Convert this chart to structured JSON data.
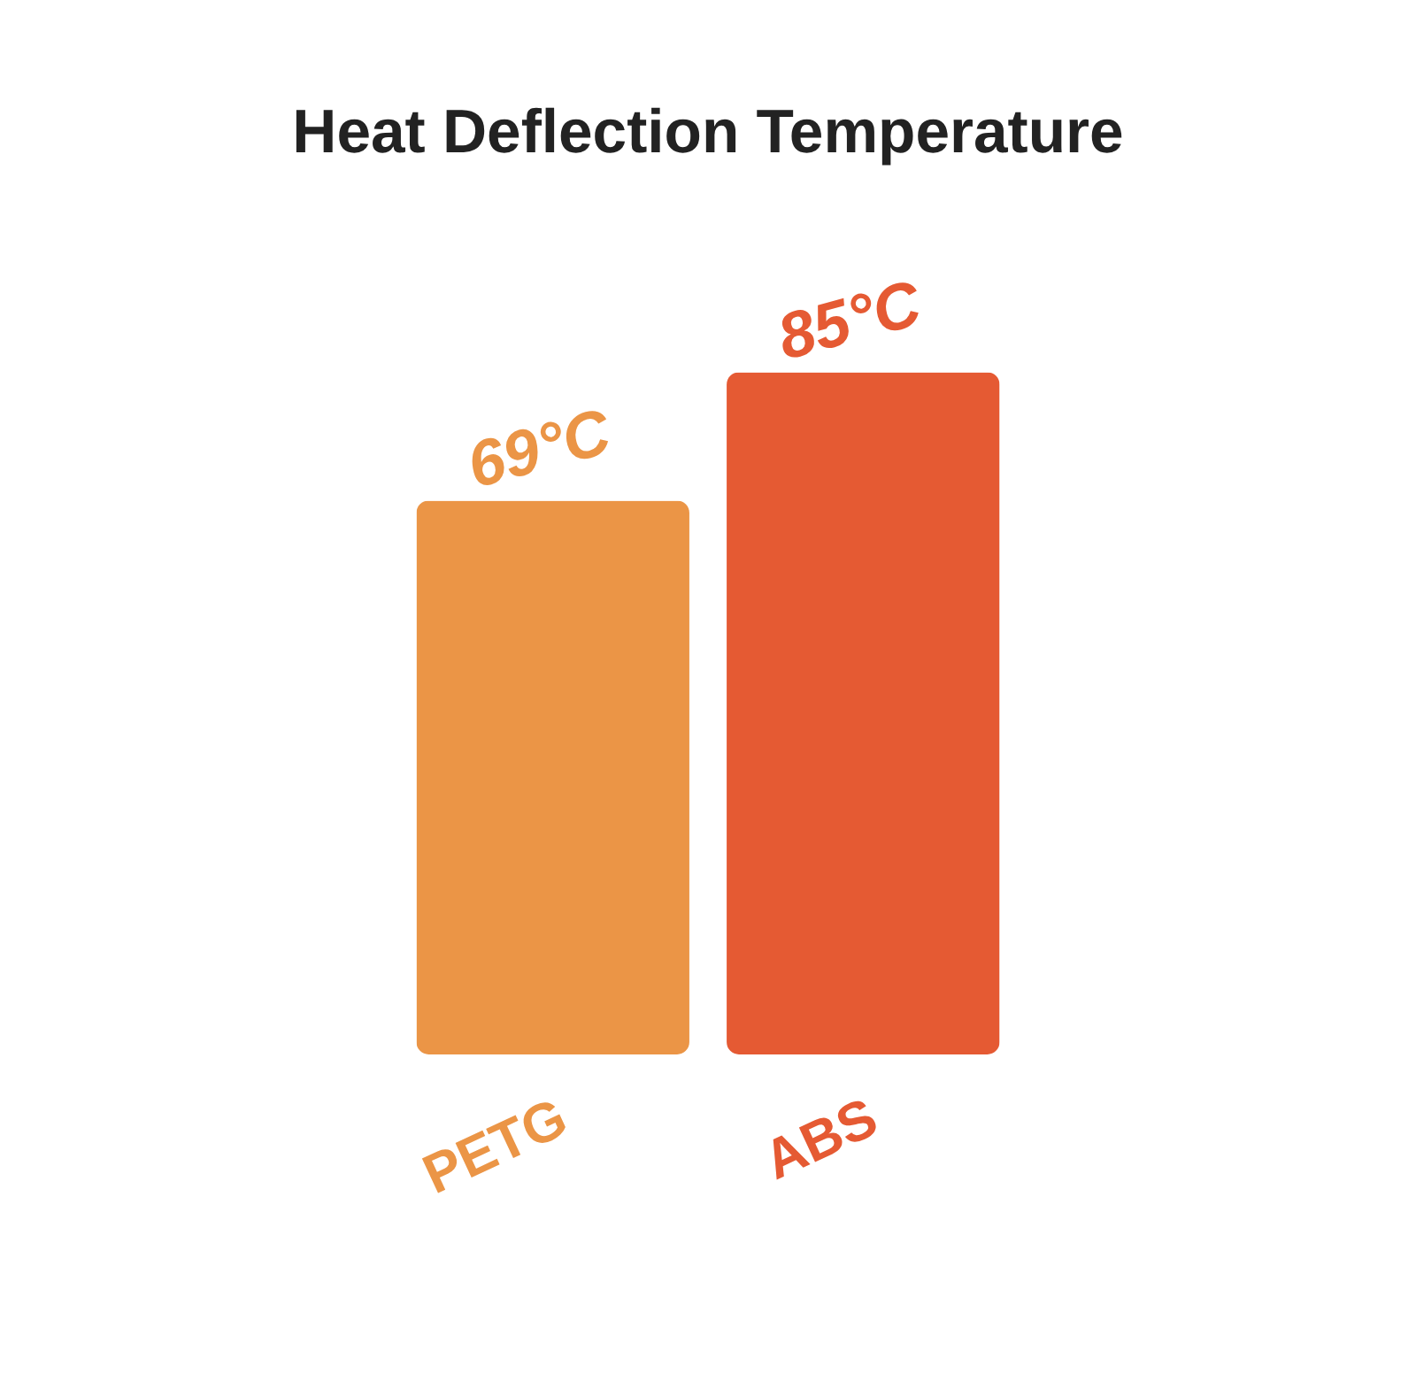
{
  "chart_data": {
    "type": "bar",
    "title": "Heat Deflection Temperature",
    "categories": [
      "PETG",
      "ABS"
    ],
    "values": [
      69,
      85
    ],
    "colors": [
      "#eb9546",
      "#e55a33"
    ],
    "value_labels": [
      "69°C",
      "85°C"
    ],
    "grid": false,
    "legend": false
  }
}
